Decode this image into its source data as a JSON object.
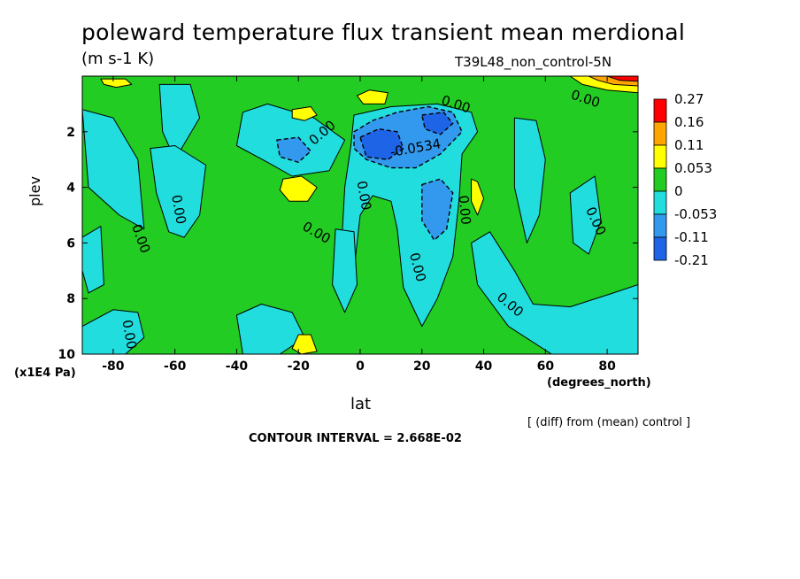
{
  "title": "poleward temperature flux transient mean merdional",
  "units": "(m s-1 K)",
  "run_label": "T39L48_non_control-5N",
  "footer": {
    "diff_note": "[ (diff) from (mean) control ]",
    "contour_interval": "CONTOUR INTERVAL = 2.668E-02"
  },
  "colors": {
    "green": "#22cc22",
    "cyan": "#22dddd",
    "light_blue": "#3399ee",
    "blue": "#1e64e6",
    "yellow": "#ffff00",
    "orange": "#ffa500",
    "red": "#ff0000"
  },
  "chart_data": {
    "type": "heatmap",
    "title": "poleward temperature flux transient mean merdional",
    "xlabel": "lat",
    "x_units": "(degrees_north)",
    "ylabel": "plev",
    "y_units": "(x1E4 Pa)",
    "xlim": [
      -90,
      90
    ],
    "ylim": [
      10,
      0
    ],
    "x_ticks": [
      -80,
      -60,
      -40,
      -20,
      0,
      20,
      40,
      60,
      80
    ],
    "y_ticks": [
      2,
      4,
      6,
      8,
      10
    ],
    "x_tick_labels": [
      "-80",
      "-60",
      "-40",
      "-20",
      "0",
      "20",
      "40",
      "60",
      "80"
    ],
    "y_tick_labels": [
      "2",
      "4",
      "6",
      "8",
      "10"
    ],
    "contour_labels": [
      "0.00",
      "-0.0534"
    ],
    "colorbar": {
      "labels": [
        "0.27",
        "0.16",
        "0.11",
        "0.053",
        "0",
        "-0.053",
        "-0.11",
        "-0.21"
      ],
      "bins": [
        {
          "color": "#ff0000"
        },
        {
          "color": "#ffa500"
        },
        {
          "color": "#ffff00"
        },
        {
          "color": "#22cc22"
        },
        {
          "color": "#22dddd"
        },
        {
          "color": "#3399ee"
        },
        {
          "color": "#1e64e6"
        }
      ]
    },
    "background_level": "0 to 0.053",
    "regions": [
      {
        "level": "-0.053 to 0",
        "polygon": [
          [
            -65,
            0.3
          ],
          [
            -55,
            0.3
          ],
          [
            -52,
            1.5
          ],
          [
            -60,
            3
          ],
          [
            -64,
            2
          ]
        ]
      },
      {
        "level": "-0.053 to 0",
        "polygon": [
          [
            -90,
            1.2
          ],
          [
            -80,
            1.5
          ],
          [
            -72,
            3
          ],
          [
            -70,
            5.5
          ],
          [
            -78,
            5
          ],
          [
            -88,
            4
          ]
        ]
      },
      {
        "level": "-0.053 to 0",
        "polygon": [
          [
            -90,
            5.8
          ],
          [
            -84,
            5.4
          ],
          [
            -83,
            7.5
          ],
          [
            -88,
            7.8
          ],
          [
            -90,
            7
          ]
        ]
      },
      {
        "level": "-0.053 to 0",
        "polygon": [
          [
            -68,
            2.6
          ],
          [
            -60,
            2.5
          ],
          [
            -50,
            3.2
          ],
          [
            -52,
            5
          ],
          [
            -57,
            5.8
          ],
          [
            -62,
            5.6
          ],
          [
            -66,
            4.2
          ]
        ]
      },
      {
        "level": "-0.053 to 0",
        "polygon": [
          [
            -38,
            1.3
          ],
          [
            -30,
            1.0
          ],
          [
            -15,
            1.5
          ],
          [
            -5,
            2.3
          ],
          [
            -10,
            3.4
          ],
          [
            -22,
            3.6
          ],
          [
            -30,
            3.1
          ],
          [
            -40,
            2.5
          ]
        ]
      },
      {
        "level": "-0.053 to 0",
        "polygon": [
          [
            -2,
            1.4
          ],
          [
            10,
            1.1
          ],
          [
            25,
            1.0
          ],
          [
            36,
            1.3
          ],
          [
            38,
            2.0
          ],
          [
            33,
            2.8
          ],
          [
            32,
            4.5
          ],
          [
            30,
            6.5
          ],
          [
            25,
            8
          ],
          [
            20,
            9
          ],
          [
            14,
            7.6
          ],
          [
            12,
            5.5
          ],
          [
            10,
            4.5
          ],
          [
            4,
            4.3
          ],
          [
            0,
            5
          ],
          [
            -2,
            7
          ],
          [
            -6,
            6
          ],
          [
            -5,
            4
          ],
          [
            -3,
            2.5
          ]
        ]
      },
      {
        "level": "-0.053 to 0",
        "polygon": [
          [
            36,
            6
          ],
          [
            42,
            5.6
          ],
          [
            50,
            7
          ],
          [
            56,
            8.2
          ],
          [
            68,
            8.3
          ],
          [
            82,
            7.8
          ],
          [
            90,
            7.5
          ],
          [
            90,
            10
          ],
          [
            62,
            10
          ],
          [
            48,
            9
          ],
          [
            38,
            7.5
          ]
        ]
      },
      {
        "level": "-0.053 to 0",
        "polygon": [
          [
            50,
            1.5
          ],
          [
            57,
            1.6
          ],
          [
            60,
            3
          ],
          [
            58,
            5
          ],
          [
            54,
            6
          ],
          [
            50,
            4
          ]
        ]
      },
      {
        "level": "-0.053 to 0",
        "polygon": [
          [
            -90,
            9
          ],
          [
            -80,
            8.4
          ],
          [
            -72,
            8.5
          ],
          [
            -70,
            9.4
          ],
          [
            -76,
            10
          ],
          [
            -90,
            10
          ]
        ]
      },
      {
        "level": "-0.053 to 0",
        "polygon": [
          [
            -40,
            8.6
          ],
          [
            -32,
            8.2
          ],
          [
            -22,
            8.5
          ],
          [
            -18,
            9.4
          ],
          [
            -26,
            10
          ],
          [
            -38,
            10
          ]
        ]
      },
      {
        "level": "-0.053 to 0",
        "polygon": [
          [
            -8,
            5.5
          ],
          [
            -2,
            5.6
          ],
          [
            -1,
            7.5
          ],
          [
            -5,
            8.5
          ],
          [
            -9,
            7.5
          ]
        ]
      },
      {
        "level": "-0.053 to 0",
        "polygon": [
          [
            68,
            4.2
          ],
          [
            76,
            3.6
          ],
          [
            78,
            5.2
          ],
          [
            74,
            6.4
          ],
          [
            69,
            6
          ]
        ]
      },
      {
        "level": "-0.11 to -0.053",
        "polygon": [
          [
            -2,
            2.0
          ],
          [
            4,
            1.6
          ],
          [
            12,
            1.3
          ],
          [
            22,
            1.1
          ],
          [
            30,
            1.3
          ],
          [
            33,
            2.0
          ],
          [
            26,
            2.8
          ],
          [
            18,
            3.3
          ],
          [
            10,
            3.3
          ],
          [
            2,
            3.0
          ],
          [
            -2,
            2.6
          ]
        ]
      },
      {
        "level": "-0.11 to -0.053",
        "polygon": [
          [
            -27,
            2.3
          ],
          [
            -20,
            2.2
          ],
          [
            -16,
            2.7
          ],
          [
            -20,
            3.1
          ],
          [
            -26,
            2.9
          ]
        ]
      },
      {
        "level": "-0.11 to -0.053",
        "polygon": [
          [
            20,
            3.9
          ],
          [
            26,
            3.7
          ],
          [
            30,
            4.2
          ],
          [
            28,
            5.5
          ],
          [
            24,
            5.9
          ],
          [
            20,
            5.2
          ]
        ]
      },
      {
        "level": "-0.21 to -0.11",
        "polygon": [
          [
            0,
            2.2
          ],
          [
            6,
            1.9
          ],
          [
            12,
            2.0
          ],
          [
            14,
            2.6
          ],
          [
            9,
            3.0
          ],
          [
            2,
            2.9
          ]
        ]
      },
      {
        "level": "-0.21 to -0.11",
        "polygon": [
          [
            20,
            1.4
          ],
          [
            27,
            1.3
          ],
          [
            30,
            1.7
          ],
          [
            26,
            2.1
          ],
          [
            21,
            1.9
          ]
        ]
      },
      {
        "level": "0.053 to 0.11",
        "polygon": [
          [
            -25,
            3.7
          ],
          [
            -19,
            3.6
          ],
          [
            -14,
            4.0
          ],
          [
            -17,
            4.5
          ],
          [
            -23,
            4.5
          ],
          [
            -26,
            4.1
          ]
        ]
      },
      {
        "level": "0.053 to 0.11",
        "polygon": [
          [
            36,
            3.7
          ],
          [
            38,
            3.8
          ],
          [
            40,
            4.4
          ],
          [
            38,
            5.0
          ],
          [
            36,
            4.5
          ]
        ]
      },
      {
        "level": "0.053 to 0.11",
        "polygon": [
          [
            -84,
            0.1
          ],
          [
            -76,
            0.1
          ],
          [
            -74,
            0.3
          ],
          [
            -79,
            0.4
          ],
          [
            -83,
            0.3
          ]
        ]
      },
      {
        "level": "0.053 to 0.11",
        "polygon": [
          [
            -1,
            0.7
          ],
          [
            3,
            0.5
          ],
          [
            9,
            0.6
          ],
          [
            8,
            1.0
          ],
          [
            1,
            1.0
          ]
        ]
      },
      {
        "level": "0.053 to 0.11",
        "polygon": [
          [
            -22,
            1.2
          ],
          [
            -16,
            1.1
          ],
          [
            -14,
            1.4
          ],
          [
            -18,
            1.6
          ],
          [
            -22,
            1.5
          ]
        ]
      },
      {
        "level": "0.053 to 0.11",
        "polygon": [
          [
            -20,
            9.3
          ],
          [
            -16,
            9.3
          ],
          [
            -14,
            9.9
          ],
          [
            -19,
            10
          ],
          [
            -22,
            9.8
          ]
        ]
      },
      {
        "level": "0.053 to 0.11",
        "polygon": [
          [
            68,
            0
          ],
          [
            90,
            0
          ],
          [
            90,
            0.6
          ],
          [
            80,
            0.5
          ],
          [
            72,
            0.3
          ]
        ]
      },
      {
        "level": "0.11 to 0.16",
        "polygon": [
          [
            74,
            0
          ],
          [
            90,
            0
          ],
          [
            90,
            0.35
          ],
          [
            82,
            0.3
          ],
          [
            77,
            0.15
          ]
        ]
      },
      {
        "level": "0.16 to 0.27",
        "polygon": [
          [
            80,
            0
          ],
          [
            90,
            0
          ],
          [
            90,
            0.18
          ],
          [
            84,
            0.15
          ]
        ]
      }
    ]
  }
}
